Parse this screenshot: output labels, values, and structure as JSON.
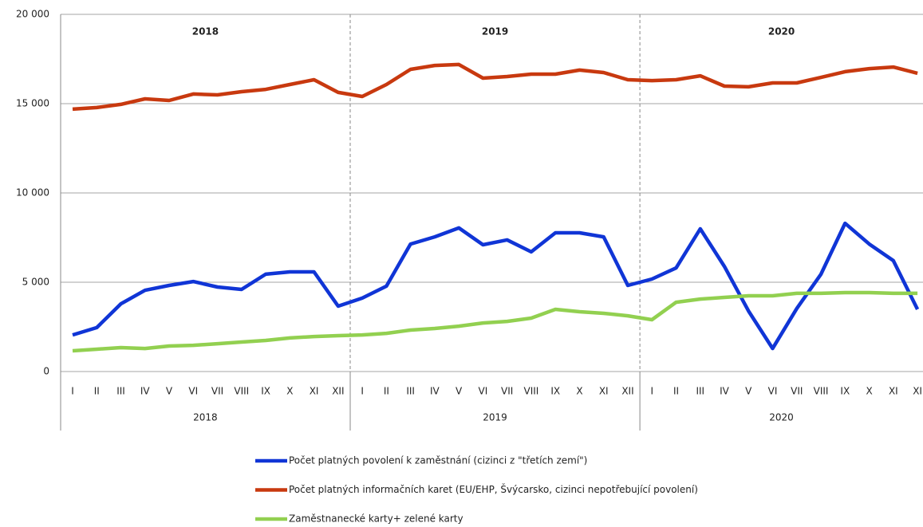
{
  "chart_data": {
    "type": "line",
    "categories": [
      "I",
      "II",
      "III",
      "IV",
      "V",
      "VI",
      "VII",
      "VIII",
      "IX",
      "X",
      "XI",
      "XII",
      "I",
      "II",
      "III",
      "IV",
      "V",
      "VI",
      "VII",
      "VIII",
      "IX",
      "X",
      "XI",
      "XII",
      "I",
      "II",
      "III",
      "IV",
      "V",
      "VI",
      "VII",
      "VIII",
      "IX",
      "X",
      "XI",
      "XI"
    ],
    "groups": [
      "2018",
      "2019",
      "2020"
    ],
    "series": [
      {
        "name": "Počet platných povolení k zaměstnání (cizinci z \"třetích zemí\")",
        "color": "#1035d6",
        "values": [
          2050,
          2460,
          3790,
          4550,
          4820,
          5040,
          4730,
          4600,
          5450,
          5580,
          5580,
          3660,
          4110,
          4780,
          7140,
          7540,
          8040,
          7100,
          7370,
          6700,
          7770,
          7770,
          7540,
          4820,
          5180,
          5800,
          7990,
          5890,
          3390,
          1290,
          3530,
          5450,
          8300,
          7140,
          6210,
          3480
        ]
      },
      {
        "name": "Počet platných informačních karet (EU/EHP, Švýcarsko, cizinci nepotřebující povolení)",
        "color": "#c8390f",
        "values": [
          14690,
          14780,
          14960,
          15270,
          15180,
          15540,
          15490,
          15670,
          15800,
          16070,
          16340,
          15630,
          15400,
          16070,
          16920,
          17140,
          17190,
          16430,
          16520,
          16650,
          16650,
          16880,
          16740,
          16340,
          16290,
          16340,
          16560,
          15980,
          15940,
          16160,
          16160,
          16470,
          16790,
          16960,
          17050,
          16700
        ]
      },
      {
        "name": "Zaměstnanecké karty+ zelené karty",
        "color": "#92d050",
        "values": [
          1160,
          1250,
          1340,
          1290,
          1430,
          1470,
          1560,
          1650,
          1740,
          1880,
          1960,
          2010,
          2050,
          2140,
          2320,
          2410,
          2540,
          2720,
          2810,
          2990,
          3480,
          3350,
          3260,
          3120,
          2900,
          3880,
          4060,
          4150,
          4240,
          4240,
          4380,
          4380,
          4420,
          4420,
          4380,
          4380
        ]
      }
    ],
    "ylim": [
      0,
      20000
    ],
    "yticks": [
      0,
      {
        "value": 5000,
        "label": "5 000"
      },
      {
        "value": 10000,
        "label": "10 000"
      },
      {
        "value": 15000,
        "label": "15 000"
      },
      {
        "value": 20000,
        "label": "20 000"
      }
    ],
    "grid": true,
    "legend": "bottom"
  }
}
